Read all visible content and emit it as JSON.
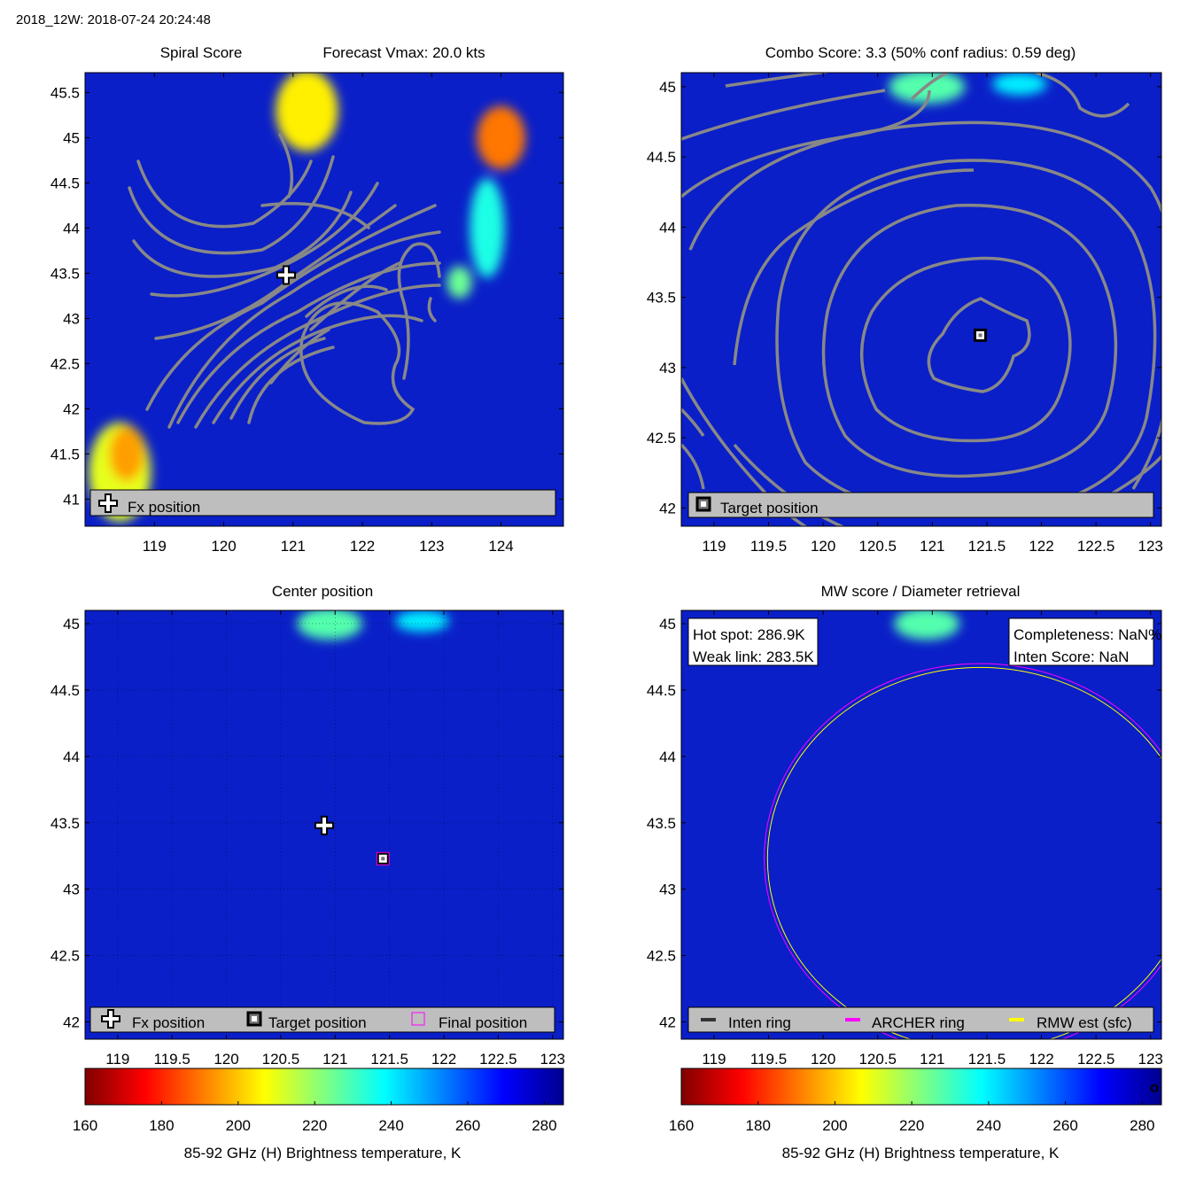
{
  "figure": {
    "header": "2018_12W: 2018-07-24 20:24:48"
  },
  "colors": {
    "background": "#0a1fc8",
    "contour": "#888888",
    "legend_box": "#bebebe",
    "archer_ring": "#ff00ff",
    "rmw_ring": "#ffff00",
    "inten_ring": "#333333",
    "colormap_stops": [
      "#800000",
      "#ff0000",
      "#ff8000",
      "#ffff00",
      "#80ff80",
      "#00ffff",
      "#0080ff",
      "#0000ff",
      "#00008f"
    ]
  },
  "chart_data": [
    {
      "id": "spiral",
      "type": "heatmap",
      "title_left": "Spiral Score",
      "title_right": "Forecast Vmax: 20.0 kts",
      "xlim": [
        118.0,
        124.9
      ],
      "ylim": [
        40.7,
        45.72
      ],
      "xticks": [
        119,
        120,
        121,
        122,
        123,
        124
      ],
      "xtick_labels": [
        "119",
        "120",
        "121",
        "122",
        "123",
        "124"
      ],
      "yticks": [
        41,
        41.5,
        42,
        42.5,
        43,
        43.5,
        44,
        44.5,
        45,
        45.5
      ],
      "ytick_labels": [
        "41",
        "41.5",
        "42",
        "42.5",
        "43",
        "43.5",
        "44",
        "44.5",
        "45",
        "45.5"
      ],
      "grid": false,
      "markers": [
        {
          "type": "fx",
          "lon": 120.9,
          "lat": 43.48
        }
      ],
      "legend": {
        "placement": "bottom",
        "entries": [
          "Fx position"
        ]
      },
      "hot_blobs": [
        {
          "lon": 121.2,
          "lat": 45.3,
          "rx": 0.45,
          "ry": 0.45,
          "temp": 205
        },
        {
          "lon": 124.0,
          "lat": 45.0,
          "rx": 0.35,
          "ry": 0.35,
          "temp": 190
        },
        {
          "lon": 123.8,
          "lat": 44.0,
          "rx": 0.25,
          "ry": 0.55,
          "temp": 235
        },
        {
          "lon": 123.4,
          "lat": 43.4,
          "rx": 0.18,
          "ry": 0.18,
          "temp": 225
        },
        {
          "lon": 118.5,
          "lat": 41.3,
          "rx": 0.45,
          "ry": 0.55,
          "temp": 210
        },
        {
          "lon": 118.6,
          "lat": 41.5,
          "rx": 0.25,
          "ry": 0.3,
          "temp": 195
        }
      ]
    },
    {
      "id": "combo",
      "type": "heatmap",
      "title": "Combo Score: 3.3  (50% conf radius: 0.59 deg)",
      "xlim": [
        118.7,
        123.1
      ],
      "ylim": [
        41.87,
        45.1
      ],
      "xticks": [
        119,
        119.5,
        120,
        120.5,
        121,
        121.5,
        122,
        122.5,
        123
      ],
      "xtick_labels": [
        "119",
        "119.5",
        "120",
        "120.5",
        "121",
        "121.5",
        "122",
        "122.5",
        "123"
      ],
      "yticks": [
        42,
        42.5,
        43,
        43.5,
        44,
        44.5,
        45
      ],
      "ytick_labels": [
        "42",
        "42.5",
        "43",
        "43.5",
        "44",
        "44.5",
        "45"
      ],
      "grid": false,
      "markers": [
        {
          "type": "target",
          "lon": 121.44,
          "lat": 43.23
        }
      ],
      "contour_center": [
        121.4,
        43.15
      ],
      "legend": {
        "placement": "bottom",
        "entries": [
          "Target position"
        ]
      },
      "hot_blobs": [
        {
          "lon": 120.95,
          "lat": 45.0,
          "rx": 0.35,
          "ry": 0.12,
          "temp": 228
        },
        {
          "lon": 121.8,
          "lat": 45.02,
          "rx": 0.25,
          "ry": 0.08,
          "temp": 240
        }
      ]
    },
    {
      "id": "center",
      "type": "heatmap",
      "title": "Center position",
      "xlim": [
        118.7,
        123.1
      ],
      "ylim": [
        41.87,
        45.1
      ],
      "xticks": [
        119,
        119.5,
        120,
        120.5,
        121,
        121.5,
        122,
        122.5,
        123
      ],
      "xtick_labels": [
        "119",
        "119.5",
        "120",
        "120.5",
        "121",
        "121.5",
        "122",
        "122.5",
        "123"
      ],
      "yticks": [
        42,
        42.5,
        43,
        43.5,
        44,
        44.5,
        45
      ],
      "ytick_labels": [
        "42",
        "42.5",
        "43",
        "43.5",
        "44",
        "44.5",
        "45"
      ],
      "grid": true,
      "markers": [
        {
          "type": "fx",
          "lon": 120.9,
          "lat": 43.48
        },
        {
          "type": "target",
          "lon": 121.44,
          "lat": 43.23
        },
        {
          "type": "final",
          "lon": 121.44,
          "lat": 43.23
        }
      ],
      "legend": {
        "placement": "bottom",
        "entries": [
          "Fx position",
          "Target position",
          "Final position"
        ]
      },
      "colorbar": {
        "label": "85-92 GHz (H) Brightness temperature, K",
        "range": [
          160,
          285
        ],
        "ticks": [
          160,
          180,
          200,
          220,
          240,
          260,
          280
        ],
        "tick_labels": [
          "160",
          "180",
          "200",
          "220",
          "240",
          "260",
          "280"
        ]
      },
      "hot_blobs": [
        {
          "lon": 120.95,
          "lat": 45.0,
          "rx": 0.3,
          "ry": 0.12,
          "temp": 228
        },
        {
          "lon": 121.8,
          "lat": 45.02,
          "rx": 0.25,
          "ry": 0.08,
          "temp": 240
        }
      ]
    },
    {
      "id": "mw",
      "type": "heatmap",
      "title": "MW score / Diameter retrieval",
      "xlim": [
        118.7,
        123.1
      ],
      "ylim": [
        41.87,
        45.1
      ],
      "xticks": [
        119,
        119.5,
        120,
        120.5,
        121,
        121.5,
        122,
        122.5,
        123
      ],
      "xtick_labels": [
        "119",
        "119.5",
        "120",
        "120.5",
        "121",
        "121.5",
        "122",
        "122.5",
        "123"
      ],
      "yticks": [
        42,
        42.5,
        43,
        43.5,
        44,
        44.5,
        45
      ],
      "ytick_labels": [
        "42",
        "42.5",
        "43",
        "43.5",
        "44",
        "44.5",
        "45"
      ],
      "grid": false,
      "rings": [
        {
          "name": "ARCHER ring",
          "lon": 121.44,
          "lat": 43.23,
          "rx_deg": 1.98,
          "ry_deg": 1.47
        },
        {
          "name": "RMW est (sfc)",
          "lon": 121.44,
          "lat": 43.23,
          "rx_deg": 1.95,
          "ry_deg": 1.44
        }
      ],
      "info_left": [
        "Hot spot: 286.9K",
        "Weak link: 283.5K"
      ],
      "info_right": [
        "Completeness: NaN%",
        "Inten Score: NaN"
      ],
      "legend": {
        "placement": "bottom",
        "entries": [
          "Inten ring",
          "ARCHER ring",
          "RMW est (sfc)"
        ]
      },
      "colorbar": {
        "label": "85-92 GHz (H) Brightness temperature, K",
        "range": [
          160,
          285
        ],
        "ticks": [
          160,
          180,
          200,
          220,
          240,
          260,
          280
        ],
        "tick_labels": [
          "160",
          "180",
          "200",
          "220",
          "240",
          "260",
          "280"
        ],
        "end_mark": "o"
      },
      "hot_blobs": [
        {
          "lon": 120.95,
          "lat": 45.0,
          "rx": 0.3,
          "ry": 0.12,
          "temp": 228
        }
      ]
    }
  ]
}
